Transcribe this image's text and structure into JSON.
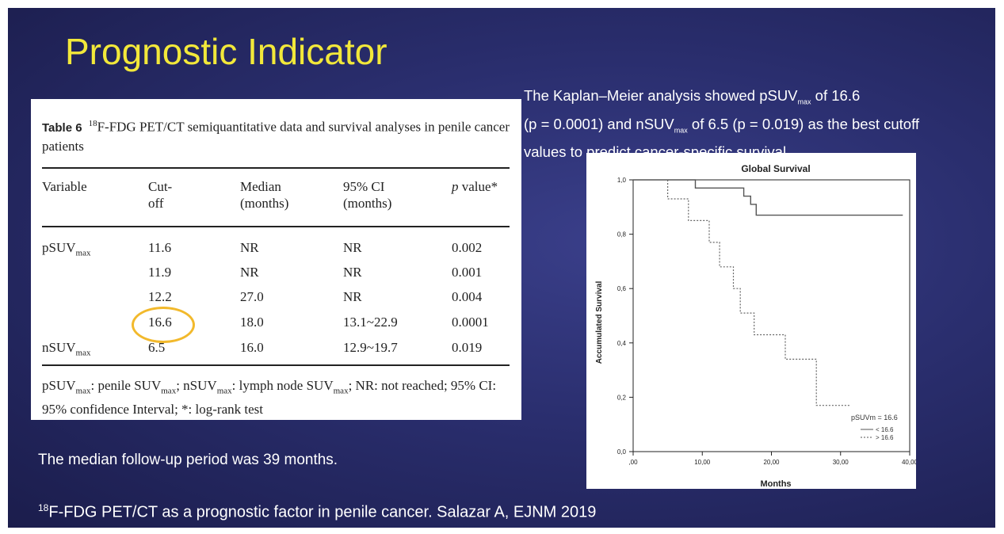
{
  "slide": {
    "title": "Prognostic Indicator",
    "background_color": "#2a2e6e",
    "title_color": "#f2e83a"
  },
  "table": {
    "label": "Table 6",
    "caption_sup": "18",
    "caption": "F-FDG PET/CT semiquantitative data and survival analyses in penile cancer patients",
    "headers": {
      "variable": "Variable",
      "cutoff_1": "Cut-",
      "cutoff_2": "off",
      "median_1": "Median",
      "median_2": "(months)",
      "ci_1": "95% CI",
      "ci_2": "(months)",
      "p_italic": "p",
      "p_rest": " value*"
    },
    "rows": [
      {
        "variable_base": "pSUV",
        "variable_sub": "max",
        "cutoff": "11.6",
        "median": "NR",
        "ci": "NR",
        "p": "0.002"
      },
      {
        "variable_base": "",
        "variable_sub": "",
        "cutoff": "11.9",
        "median": "NR",
        "ci": "NR",
        "p": "0.001"
      },
      {
        "variable_base": "",
        "variable_sub": "",
        "cutoff": "12.2",
        "median": "27.0",
        "ci": "NR",
        "p": "0.004"
      },
      {
        "variable_base": "",
        "variable_sub": "",
        "cutoff": "16.6",
        "median": "18.0",
        "ci": "13.1~22.9",
        "p": "0.0001"
      },
      {
        "variable_base": "nSUV",
        "variable_sub": "max",
        "cutoff": "6.5",
        "median": "16.0",
        "ci": "12.9~19.7",
        "p": "0.019"
      }
    ],
    "highlighted_value": "16.6",
    "highlight_color": "#f2b92c",
    "footnote": {
      "a_base": "pSUV",
      "a_sub": "max",
      "a_rest": ": penile SUV",
      "b_sub": "max",
      "b_rest": "; nSUV",
      "c_sub": "max",
      "c_rest": ": lymph node SUV",
      "d_sub": "max",
      "d_rest": "; NR: not reached; 95% CI: 95% confidence Interval; *: log-rank test"
    }
  },
  "km_text": {
    "line1_a": "The Kaplan–Meier analysis showed pSUV",
    "line1_sub": "max",
    "line1_b": " of 16.6",
    "line2_a": "(p = 0.0001) and nSUV",
    "line2_sub": "max",
    "line2_b": " of 6.5 (p = 0.019) as the best cutoff",
    "line3": "values to predict cancer-specific survival"
  },
  "followup_text": "The median follow-up period was 39 months.",
  "citation": {
    "sup": "18",
    "text": "F-FDG PET/CT as a prognostic factor in penile cancer. Salazar A, EJNM 2019"
  },
  "chart_data": {
    "type": "line",
    "title": "Global Survival",
    "xlabel": "Months",
    "ylabel": "Accumulated Survival",
    "xlim": [
      0,
      40
    ],
    "ylim": [
      0,
      1
    ],
    "xticks": [
      0,
      10,
      20,
      30,
      40
    ],
    "xtick_labels": [
      ",00",
      "10,00",
      "20,00",
      "30,00",
      "40,00"
    ],
    "yticks": [
      0,
      0.2,
      0.4,
      0.6,
      0.8,
      1.0
    ],
    "ytick_labels": [
      "0,0",
      "0,2",
      "0,4",
      "0,6",
      "0,8",
      "1,0"
    ],
    "legend_title": "pSUVm = 16.6",
    "series": [
      {
        "name": "< 16.6",
        "style": "solid",
        "points": [
          [
            0,
            1.0
          ],
          [
            9,
            1.0
          ],
          [
            9,
            0.97
          ],
          [
            16,
            0.97
          ],
          [
            16,
            0.94
          ],
          [
            17,
            0.94
          ],
          [
            17,
            0.91
          ],
          [
            17.8,
            0.91
          ],
          [
            17.8,
            0.87
          ],
          [
            39,
            0.87
          ]
        ]
      },
      {
        "name": "> 16.6",
        "style": "dotted",
        "points": [
          [
            5,
            1.0
          ],
          [
            5,
            0.93
          ],
          [
            8,
            0.93
          ],
          [
            8,
            0.85
          ],
          [
            11,
            0.85
          ],
          [
            11,
            0.77
          ],
          [
            12.5,
            0.77
          ],
          [
            12.5,
            0.68
          ],
          [
            14.5,
            0.68
          ],
          [
            14.5,
            0.6
          ],
          [
            15.5,
            0.6
          ],
          [
            15.5,
            0.51
          ],
          [
            17.5,
            0.51
          ],
          [
            17.5,
            0.43
          ],
          [
            22,
            0.43
          ],
          [
            22,
            0.34
          ],
          [
            26.5,
            0.34
          ],
          [
            26.5,
            0.17
          ],
          [
            31.5,
            0.17
          ]
        ]
      }
    ]
  }
}
